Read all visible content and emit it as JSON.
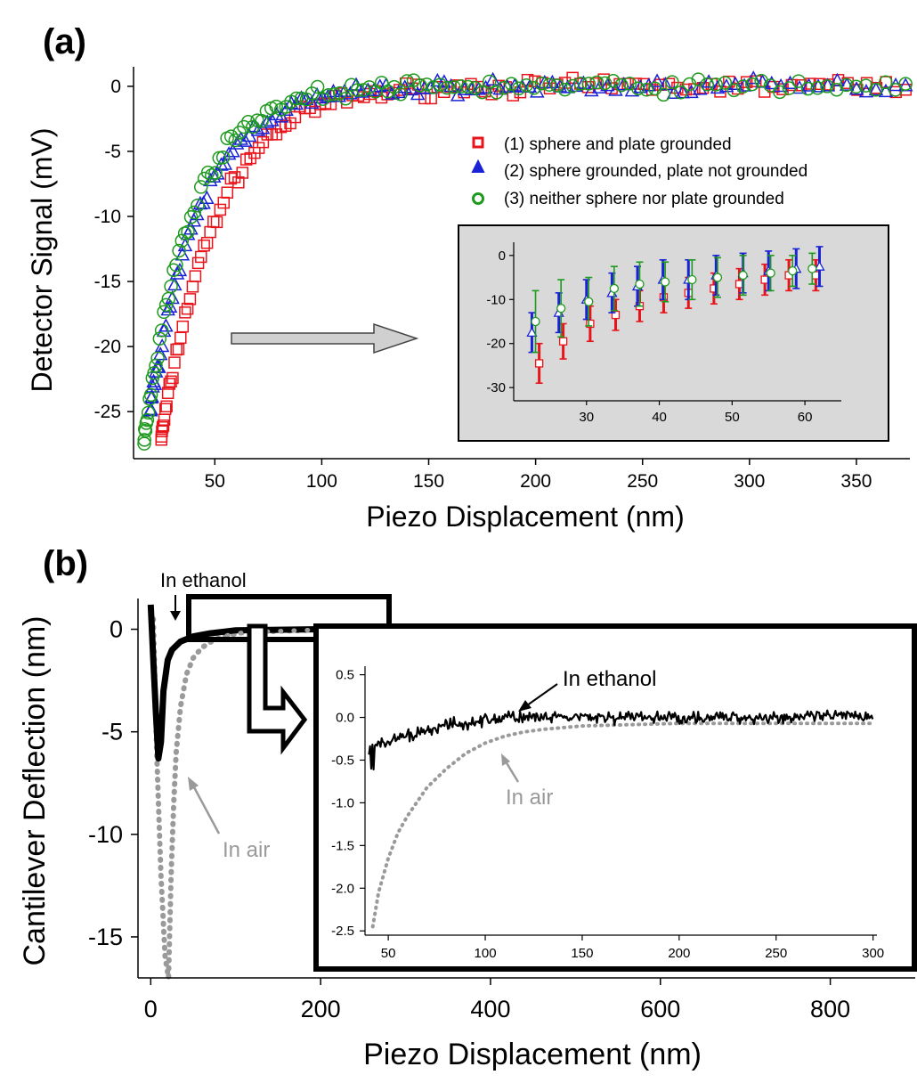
{
  "panel_a": {
    "label": "(a)",
    "xlabel": "Piezo Displacement (nm)",
    "ylabel": "Detector Signal (mV)",
    "xticks": [
      "50",
      "100",
      "150",
      "200",
      "250",
      "300",
      "350"
    ],
    "yticks": [
      "0",
      "-5",
      "-10",
      "-15",
      "-20",
      "-25"
    ],
    "legend": [
      "(1) sphere and plate grounded",
      "(2) sphere grounded, plate not grounded",
      "(3) neither sphere nor plate grounded"
    ],
    "inset_xticks": [
      "30",
      "40",
      "50",
      "60"
    ],
    "inset_yticks": [
      "0",
      "-10",
      "-20",
      "-30"
    ]
  },
  "panel_b": {
    "label": "(b)",
    "xlabel": "Piezo Displacement (nm)",
    "ylabel": "Cantilever Deflection (nm)",
    "xticks": [
      "0",
      "200",
      "400",
      "600",
      "800"
    ],
    "yticks": [
      "0",
      "-5",
      "-10",
      "-15"
    ],
    "label_ethanol": "In ethanol",
    "label_air": "In air",
    "inset_label_ethanol": "In ethanol",
    "inset_label_air": "In air",
    "inset_xticks": [
      "50",
      "100",
      "150",
      "200",
      "250",
      "300"
    ],
    "inset_yticks": [
      "0.5",
      "0.0",
      "-0.5",
      "-1.0",
      "-1.5",
      "-2.0",
      "-2.5"
    ]
  },
  "colors": {
    "series1": "#e8141b",
    "series2": "#1a22d6",
    "series3": "#1e9a1e",
    "ethanol": "#000000",
    "air": "#9a9a9a",
    "inset_bg": "#d9d9d9"
  },
  "chart_data": [
    {
      "type": "scatter",
      "title": "",
      "xlabel": "Piezo Displacement (nm)",
      "ylabel": "Detector Signal (mV)",
      "xlim": [
        12,
        375
      ],
      "ylim": [
        -28,
        1.5
      ],
      "legend_position": "right",
      "series": [
        {
          "name": "(1) sphere and plate grounded",
          "model": {
            "amplitude": -27,
            "x0": 25,
            "decay": 26
          }
        },
        {
          "name": "(2) sphere grounded, plate not grounded",
          "model": {
            "amplitude": -24.5,
            "x0": 20,
            "decay": 24
          }
        },
        {
          "name": "(3) neither sphere nor plate grounded",
          "model": {
            "amplitude": -27,
            "x0": 17,
            "decay": 22
          }
        }
      ]
    },
    {
      "type": "scatter",
      "title": "",
      "inset": true,
      "xlim": [
        20,
        65
      ],
      "ylim": [
        -33,
        3
      ],
      "series": [
        {
          "name": "(1) sphere and plate grounded",
          "x": [
            23.5,
            26.8,
            30.5,
            34,
            37.3,
            40.6,
            44,
            47.5,
            51,
            54.5,
            57.8,
            61.5
          ],
          "y": [
            -24.5,
            -19.5,
            -15.5,
            -13.5,
            -11.5,
            -9.5,
            -8.5,
            -7.5,
            -6.5,
            -5.5,
            -4.5,
            -4.5
          ],
          "err": [
            4.5,
            4,
            4,
            3.5,
            3.5,
            3.5,
            3.5,
            3.5,
            3.5,
            3.5,
            3.5,
            3.5
          ]
        },
        {
          "name": "(2) sphere grounded, plate not grounded",
          "x": [
            22.5,
            26.2,
            30,
            33.5,
            37,
            40.5,
            44,
            47.8,
            51.5,
            55,
            58.8,
            62
          ],
          "y": [
            -17.5,
            -13,
            -10,
            -8.5,
            -7,
            -5.5,
            -5.5,
            -4.5,
            -4,
            -3.5,
            -3,
            -2.5
          ],
          "err": [
            4.5,
            4.5,
            4.5,
            4.5,
            4.5,
            4.5,
            4.5,
            4.5,
            4.5,
            4.5,
            4.5,
            4.5
          ]
        },
        {
          "name": "(3) neither sphere nor plate grounded",
          "x": [
            23,
            26.5,
            30.3,
            33.8,
            37.3,
            40.8,
            44.5,
            48,
            51.5,
            55.3,
            58.3,
            61
          ],
          "y": [
            -15,
            -12,
            -10.5,
            -7.5,
            -6.5,
            -6,
            -5.5,
            -5,
            -4.5,
            -4,
            -3.5,
            -3
          ],
          "err": [
            7,
            6.5,
            5.5,
            5,
            5,
            4.5,
            4.5,
            4.5,
            4.5,
            4,
            3.5,
            3.5
          ]
        }
      ]
    },
    {
      "type": "line",
      "title": "",
      "xlabel": "Piezo Displacement (nm)",
      "ylabel": "Cantilever Deflection (nm)",
      "xlim": [
        -15,
        900
      ],
      "ylim": [
        -17,
        1.5
      ],
      "series": [
        {
          "name": "In ethanol",
          "x": [
            0,
            3,
            6,
            9,
            12,
            15,
            20,
            25,
            35,
            50,
            70,
            100,
            200,
            400,
            600,
            800,
            900
          ],
          "y": [
            1.2,
            -1.5,
            -4,
            -6.3,
            -5.5,
            -3,
            -1.5,
            -1,
            -0.6,
            -0.35,
            -0.2,
            -0.05,
            0,
            0,
            0,
            0,
            0
          ]
        },
        {
          "name": "In air",
          "x": [
            3,
            7,
            12,
            17,
            21,
            24,
            27,
            30,
            35,
            42,
            50,
            60,
            75,
            90,
            110,
            200,
            400,
            600,
            800,
            900
          ],
          "y": [
            0.5,
            -6,
            -12,
            -16,
            -17,
            -12,
            -8.5,
            -6,
            -3.8,
            -2.2,
            -1.4,
            -0.9,
            -0.5,
            -0.3,
            -0.15,
            -0.02,
            0,
            0,
            0,
            0
          ]
        }
      ]
    },
    {
      "type": "line",
      "title": "",
      "inset": true,
      "xlim": [
        38,
        302
      ],
      "ylim": [
        -2.55,
        0.6
      ],
      "series": [
        {
          "name": "In ethanol",
          "x": [
            40,
            45,
            50,
            60,
            70,
            80,
            90,
            100,
            110,
            120,
            130,
            150,
            200,
            250,
            300
          ],
          "y": [
            -0.38,
            -0.33,
            -0.28,
            -0.22,
            -0.15,
            -0.1,
            -0.06,
            -0.03,
            0.0,
            0.0,
            -0.01,
            0.0,
            0.0,
            0.0,
            0.02
          ]
        },
        {
          "name": "In air",
          "x": [
            42,
            45,
            50,
            55,
            60,
            70,
            80,
            90,
            100,
            110,
            120,
            130,
            150,
            200,
            250,
            300
          ],
          "y": [
            -2.45,
            -2.05,
            -1.65,
            -1.35,
            -1.15,
            -0.82,
            -0.6,
            -0.42,
            -0.3,
            -0.22,
            -0.17,
            -0.14,
            -0.1,
            -0.07,
            -0.07,
            -0.07
          ]
        }
      ]
    }
  ]
}
